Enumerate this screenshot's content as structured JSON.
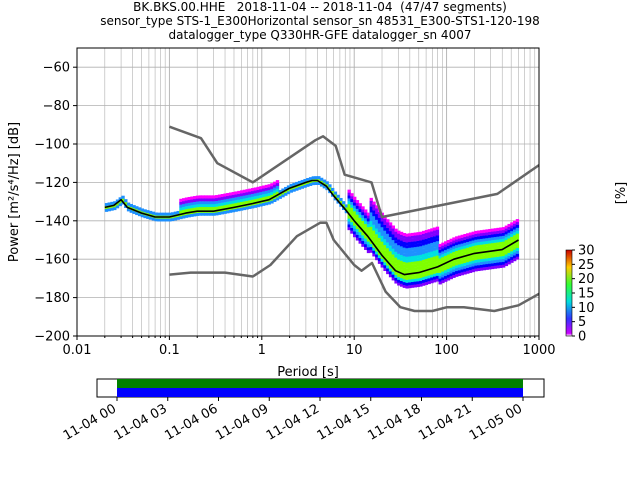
{
  "header": {
    "line1": "BK.BKS.00.HHE   2018-11-04 -- 2018-11-04  (47/47 segments)",
    "line2": "sensor_type STS-1_E300Horizontal sensor_sn 48531_E300-STS1-120-198",
    "line3": "datalogger_type Q330HR-GFE datalogger_sn 4007"
  },
  "chart_data": {
    "type": "heatmap",
    "xlabel": "Period [s]",
    "ylabel": "Power [m²/s⁴/Hz] [dB]",
    "xscale": "log",
    "xlim": [
      0.01,
      1000
    ],
    "ylim": [
      -200,
      -50
    ],
    "xticks": [
      {
        "value": 0.01,
        "label": "0.01"
      },
      {
        "value": 0.1,
        "label": "0.1"
      },
      {
        "value": 1,
        "label": "1"
      },
      {
        "value": 10,
        "label": "10"
      },
      {
        "value": 100,
        "label": "100"
      },
      {
        "value": 1000,
        "label": "1000"
      }
    ],
    "yticks": [
      -60,
      -80,
      -100,
      -120,
      -140,
      -160,
      -180,
      -200
    ],
    "grid": true,
    "noise_model_high": {
      "period": [
        0.1,
        0.22,
        0.33,
        0.8,
        3.8,
        4.6,
        6.3,
        7.9,
        15.4,
        20,
        354.8,
        1000
      ],
      "db": [
        -91,
        -97,
        -110,
        -120,
        -98,
        -96,
        -101,
        -116,
        -120,
        -138,
        -126,
        -111
      ]
    },
    "noise_model_low": {
      "period": [
        0.1,
        0.17,
        0.4,
        0.8,
        1.24,
        2.4,
        4.3,
        5.0,
        6.0,
        10.0,
        12.0,
        15.6,
        21.9,
        31.6,
        45,
        70,
        101,
        154,
        328,
        600,
        1000
      ],
      "db": [
        -168,
        -167,
        -167,
        -169,
        -163,
        -148,
        -141,
        -141,
        -150,
        -163,
        -166,
        -162,
        -177,
        -185,
        -187,
        -187,
        -185,
        -185,
        -187,
        -184,
        -178
      ]
    },
    "mean_curve": {
      "period": [
        0.02,
        0.025,
        0.03,
        0.035,
        0.05,
        0.07,
        0.1,
        0.15,
        0.2,
        0.3,
        0.5,
        0.8,
        1.2,
        2,
        3,
        3.5,
        4,
        5,
        6,
        8,
        10,
        14,
        20,
        28,
        35,
        50,
        80,
        120,
        200,
        400,
        600
      ],
      "db": [
        -133,
        -132,
        -129,
        -133,
        -136,
        -138,
        -138,
        -136,
        -135,
        -135,
        -133,
        -131,
        -129,
        -123,
        -120,
        -119,
        -119,
        -122,
        -127,
        -134,
        -140,
        -148,
        -158,
        -166,
        -168,
        -167,
        -164,
        -160,
        -157,
        -155,
        -150
      ]
    },
    "density_colorbar": {
      "label": "[%]",
      "min": 0,
      "max": 30,
      "ticks": [
        0,
        5,
        10,
        15,
        20,
        25,
        30
      ]
    },
    "data_availability": {
      "tick_labels": [
        "11-04 00",
        "11-04 03",
        "11-04 06",
        "11-04 09",
        "11-04 12",
        "11-04 15",
        "11-04 18",
        "11-04 21",
        "11-05 00"
      ],
      "coverage_fraction": 1.0,
      "colors": {
        "top": "#008000",
        "bottom": "#0000ff"
      }
    }
  }
}
